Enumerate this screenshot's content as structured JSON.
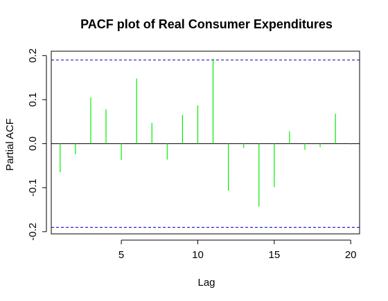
{
  "chart_data": {
    "type": "bar",
    "title": "PACF plot of Real Consumer Expenditures",
    "xlabel": "Lag",
    "ylabel": "Partial ACF",
    "xlim": [
      0.42,
      20.58
    ],
    "ylim": [
      -0.205,
      0.21
    ],
    "xticks": [
      5,
      10,
      15,
      20
    ],
    "yticks": [
      -0.2,
      -0.1,
      0.0,
      0.1,
      0.2
    ],
    "ytick_labels": [
      "-0.2",
      "-0.1",
      "0.0",
      "0.1",
      "0.2"
    ],
    "series": [
      {
        "lags": [
          1,
          2,
          3,
          4,
          5,
          6,
          7,
          8,
          9,
          10,
          11,
          12,
          13,
          14,
          15,
          16,
          17,
          18,
          19,
          20
        ],
        "values": [
          -0.065,
          -0.024,
          0.105,
          0.078,
          -0.037,
          0.148,
          0.047,
          -0.036,
          0.065,
          0.087,
          0.193,
          -0.107,
          -0.01,
          -0.143,
          -0.099,
          0.028,
          -0.014,
          -0.008,
          0.068,
          -0.002
        ]
      }
    ],
    "confidence_bound": 0.19,
    "colors": {
      "bars": "#00ee00",
      "bound": "#0000cc",
      "zero": "#000000",
      "frame": "#000000"
    },
    "grid": false
  }
}
